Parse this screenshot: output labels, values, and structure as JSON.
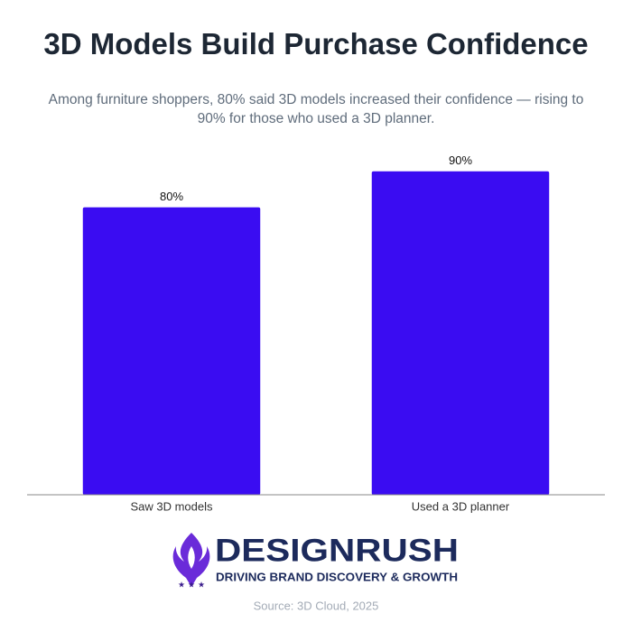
{
  "chart_data": {
    "type": "bar",
    "title": "3D Models Build Purchase Confidence",
    "subtitle": "Among furniture shoppers, 80% said 3D models increased their confidence — rising to 90% for those who used a 3D planner.",
    "categories": [
      "Saw 3D models",
      "Used a 3D planner"
    ],
    "values": [
      80,
      90
    ],
    "value_labels": [
      "80%",
      "90%"
    ],
    "color": "#3a0cf2",
    "ylim": [
      0,
      100
    ],
    "source": "Source: 3D Cloud, 2025"
  },
  "brand": {
    "name": "DESIGNRUSH",
    "tagline": "DRIVING BRAND DISCOVERY & GROWTH"
  }
}
